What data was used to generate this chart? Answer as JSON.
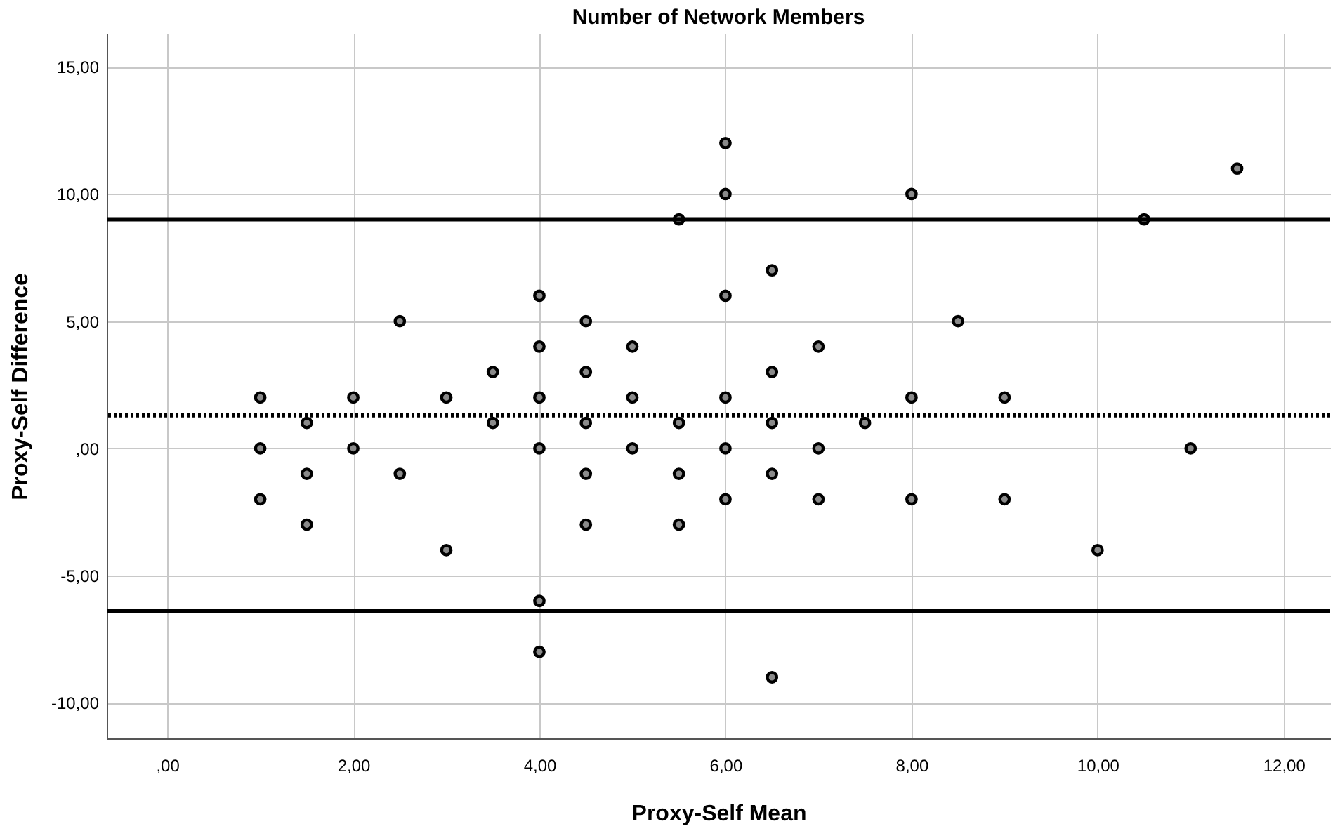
{
  "chart_data": {
    "type": "scatter",
    "title": "Number of Network Members",
    "xlabel": "Proxy-Self Mean",
    "ylabel": "Proxy-Self Difference",
    "x": [
      1,
      1,
      1,
      1.5,
      1.5,
      1.5,
      2,
      2,
      2.5,
      2.5,
      3,
      3,
      3.5,
      3.5,
      4,
      4,
      4,
      4,
      4,
      4,
      4.5,
      4.5,
      4.5,
      4.5,
      4.5,
      5,
      5,
      5,
      5.5,
      5.5,
      5.5,
      5.5,
      6,
      6,
      6,
      6,
      6,
      6,
      6.5,
      6.5,
      6.5,
      6.5,
      6.5,
      7,
      7,
      7,
      7.5,
      8,
      8,
      8,
      8.5,
      9,
      9,
      10,
      10.5,
      11,
      11.5
    ],
    "values": [
      2,
      0,
      -2,
      1,
      -1,
      -3,
      2,
      0,
      5,
      -1,
      2,
      -4,
      3,
      1,
      6,
      4,
      2,
      0,
      -6,
      -8,
      5,
      3,
      1,
      -1,
      -3,
      4,
      2,
      0,
      9,
      1,
      -1,
      -3,
      12,
      10,
      6,
      2,
      0,
      -2,
      7,
      3,
      1,
      -1,
      -9,
      4,
      0,
      -2,
      1,
      10,
      2,
      -2,
      5,
      2,
      -2,
      -4,
      9,
      0,
      11
    ],
    "color": "#000000",
    "marker": "circle",
    "xlim": [
      -0.65,
      12.5
    ],
    "ylim": [
      -11.4,
      16.3
    ],
    "xticks": [
      {
        "value": 0,
        "label": ",00"
      },
      {
        "value": 2,
        "label": "2,00"
      },
      {
        "value": 4,
        "label": "4,00"
      },
      {
        "value": 6,
        "label": "6,00"
      },
      {
        "value": 8,
        "label": "8,00"
      },
      {
        "value": 10,
        "label": "10,00"
      },
      {
        "value": 12,
        "label": "12,00"
      }
    ],
    "yticks": [
      {
        "value": -10,
        "label": "-10,00"
      },
      {
        "value": -5,
        "label": "-5,00"
      },
      {
        "value": 0,
        "label": ",00"
      },
      {
        "value": 5,
        "label": "5,00"
      },
      {
        "value": 10,
        "label": "10,00"
      },
      {
        "value": 15,
        "label": "15,00"
      }
    ],
    "ref_lines": [
      {
        "axis": "y",
        "value": 9.0,
        "color": "#000000",
        "line_style": "solid"
      },
      {
        "axis": "y",
        "value": 1.3,
        "color": "#000000",
        "line_style": "dotted"
      },
      {
        "axis": "y",
        "value": -6.4,
        "color": "#000000",
        "line_style": "solid"
      }
    ],
    "grid": true
  }
}
